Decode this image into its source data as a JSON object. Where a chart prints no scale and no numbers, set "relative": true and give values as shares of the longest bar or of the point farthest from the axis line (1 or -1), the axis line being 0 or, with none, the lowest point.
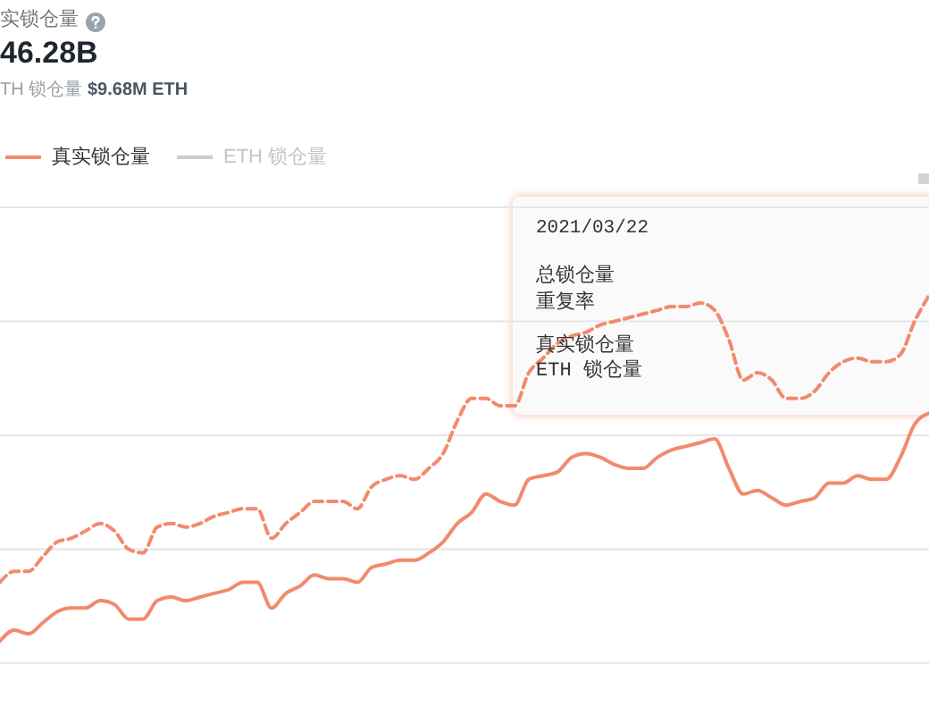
{
  "chart_data": {
    "type": "line",
    "title": "实锁仓量",
    "subtitle": "46.28B",
    "annotations": [
      "TH 锁仓量",
      "$9.68M ETH",
      "2021/03/22",
      "总锁仓量",
      "重复率",
      "真实锁仓量",
      "ETH 锁仓量"
    ],
    "relative": true,
    "grid": "y",
    "legend": "top left",
    "marker": "none",
    "categories": [
      null,
      null,
      null,
      null,
      null,
      null,
      null,
      null,
      null,
      null,
      null,
      null,
      null,
      null,
      null,
      null,
      null,
      null,
      null,
      null,
      null,
      null,
      null,
      null,
      null,
      null,
      null,
      null,
      null,
      null,
      null,
      null,
      null,
      null,
      null,
      null,
      null,
      null,
      null,
      null,
      null,
      null,
      null,
      null,
      null,
      null,
      null,
      null,
      null,
      null,
      null,
      null,
      null,
      null,
      null,
      null,
      null,
      null,
      null,
      null,
      null,
      null,
      null,
      null,
      null,
      null
    ],
    "series": [
      {
        "color": "#f28a6c",
        "line_style": "dashed",
        "values": [
          0.22,
          0.25,
          0.25,
          0.29,
          0.33,
          0.34,
          0.36,
          0.38,
          0.36,
          0.31,
          0.3,
          0.37,
          0.38,
          0.37,
          0.38,
          0.4,
          0.41,
          0.42,
          0.42,
          0.34,
          0.38,
          0.41,
          0.44,
          0.44,
          0.44,
          0.42,
          0.48,
          0.5,
          0.51,
          0.5,
          0.53,
          0.57,
          0.66,
          0.72,
          0.72,
          0.7,
          0.7,
          0.79,
          0.83,
          0.87,
          0.89,
          0.9,
          0.92,
          0.93,
          0.94,
          0.95,
          0.96,
          0.97,
          0.97,
          0.98,
          0.96,
          0.88,
          0.77,
          0.79,
          0.77,
          0.72,
          0.72,
          0.74,
          0.79,
          0.82,
          0.83,
          0.82,
          0.82,
          0.84,
          0.93,
          1
        ]
      },
      {
        "name": "真实锁仓量",
        "color": "#f28a6c",
        "line_style": "solid",
        "values": [
          0.06,
          0.09,
          0.08,
          0.11,
          0.14,
          0.15,
          0.15,
          0.17,
          0.16,
          0.12,
          0.12,
          0.17,
          0.18,
          0.17,
          0.18,
          0.19,
          0.2,
          0.22,
          0.22,
          0.15,
          0.19,
          0.21,
          0.24,
          0.23,
          0.23,
          0.22,
          0.26,
          0.27,
          0.28,
          0.28,
          0.3,
          0.33,
          0.38,
          0.41,
          0.46,
          0.44,
          0.43,
          0.5,
          0.51,
          0.52,
          0.56,
          0.57,
          0.56,
          0.54,
          0.53,
          0.53,
          0.56,
          0.58,
          0.59,
          0.6,
          0.61,
          0.53,
          0.46,
          0.47,
          0.45,
          0.43,
          0.44,
          0.45,
          0.49,
          0.49,
          0.51,
          0.5,
          0.5,
          0.56,
          0.65,
          0.68
        ]
      },
      {
        "name": "ETH 锁仓量",
        "color": "#cccccc",
        "line_style": "solid",
        "values": [
          null,
          null,
          null,
          null,
          null,
          null,
          null,
          null,
          null,
          null,
          null,
          null,
          null,
          null,
          null,
          null,
          null,
          null,
          null,
          null,
          null,
          null,
          null,
          null,
          null,
          null,
          null,
          null,
          null,
          null,
          null,
          null,
          null,
          null,
          null,
          null,
          null,
          null,
          null,
          null,
          null,
          null,
          null,
          null,
          null,
          null,
          null,
          null,
          null,
          null,
          null,
          null,
          null,
          null,
          null,
          null,
          null,
          null,
          null,
          null,
          null,
          null,
          null,
          null,
          null,
          null
        ]
      }
    ]
  }
}
